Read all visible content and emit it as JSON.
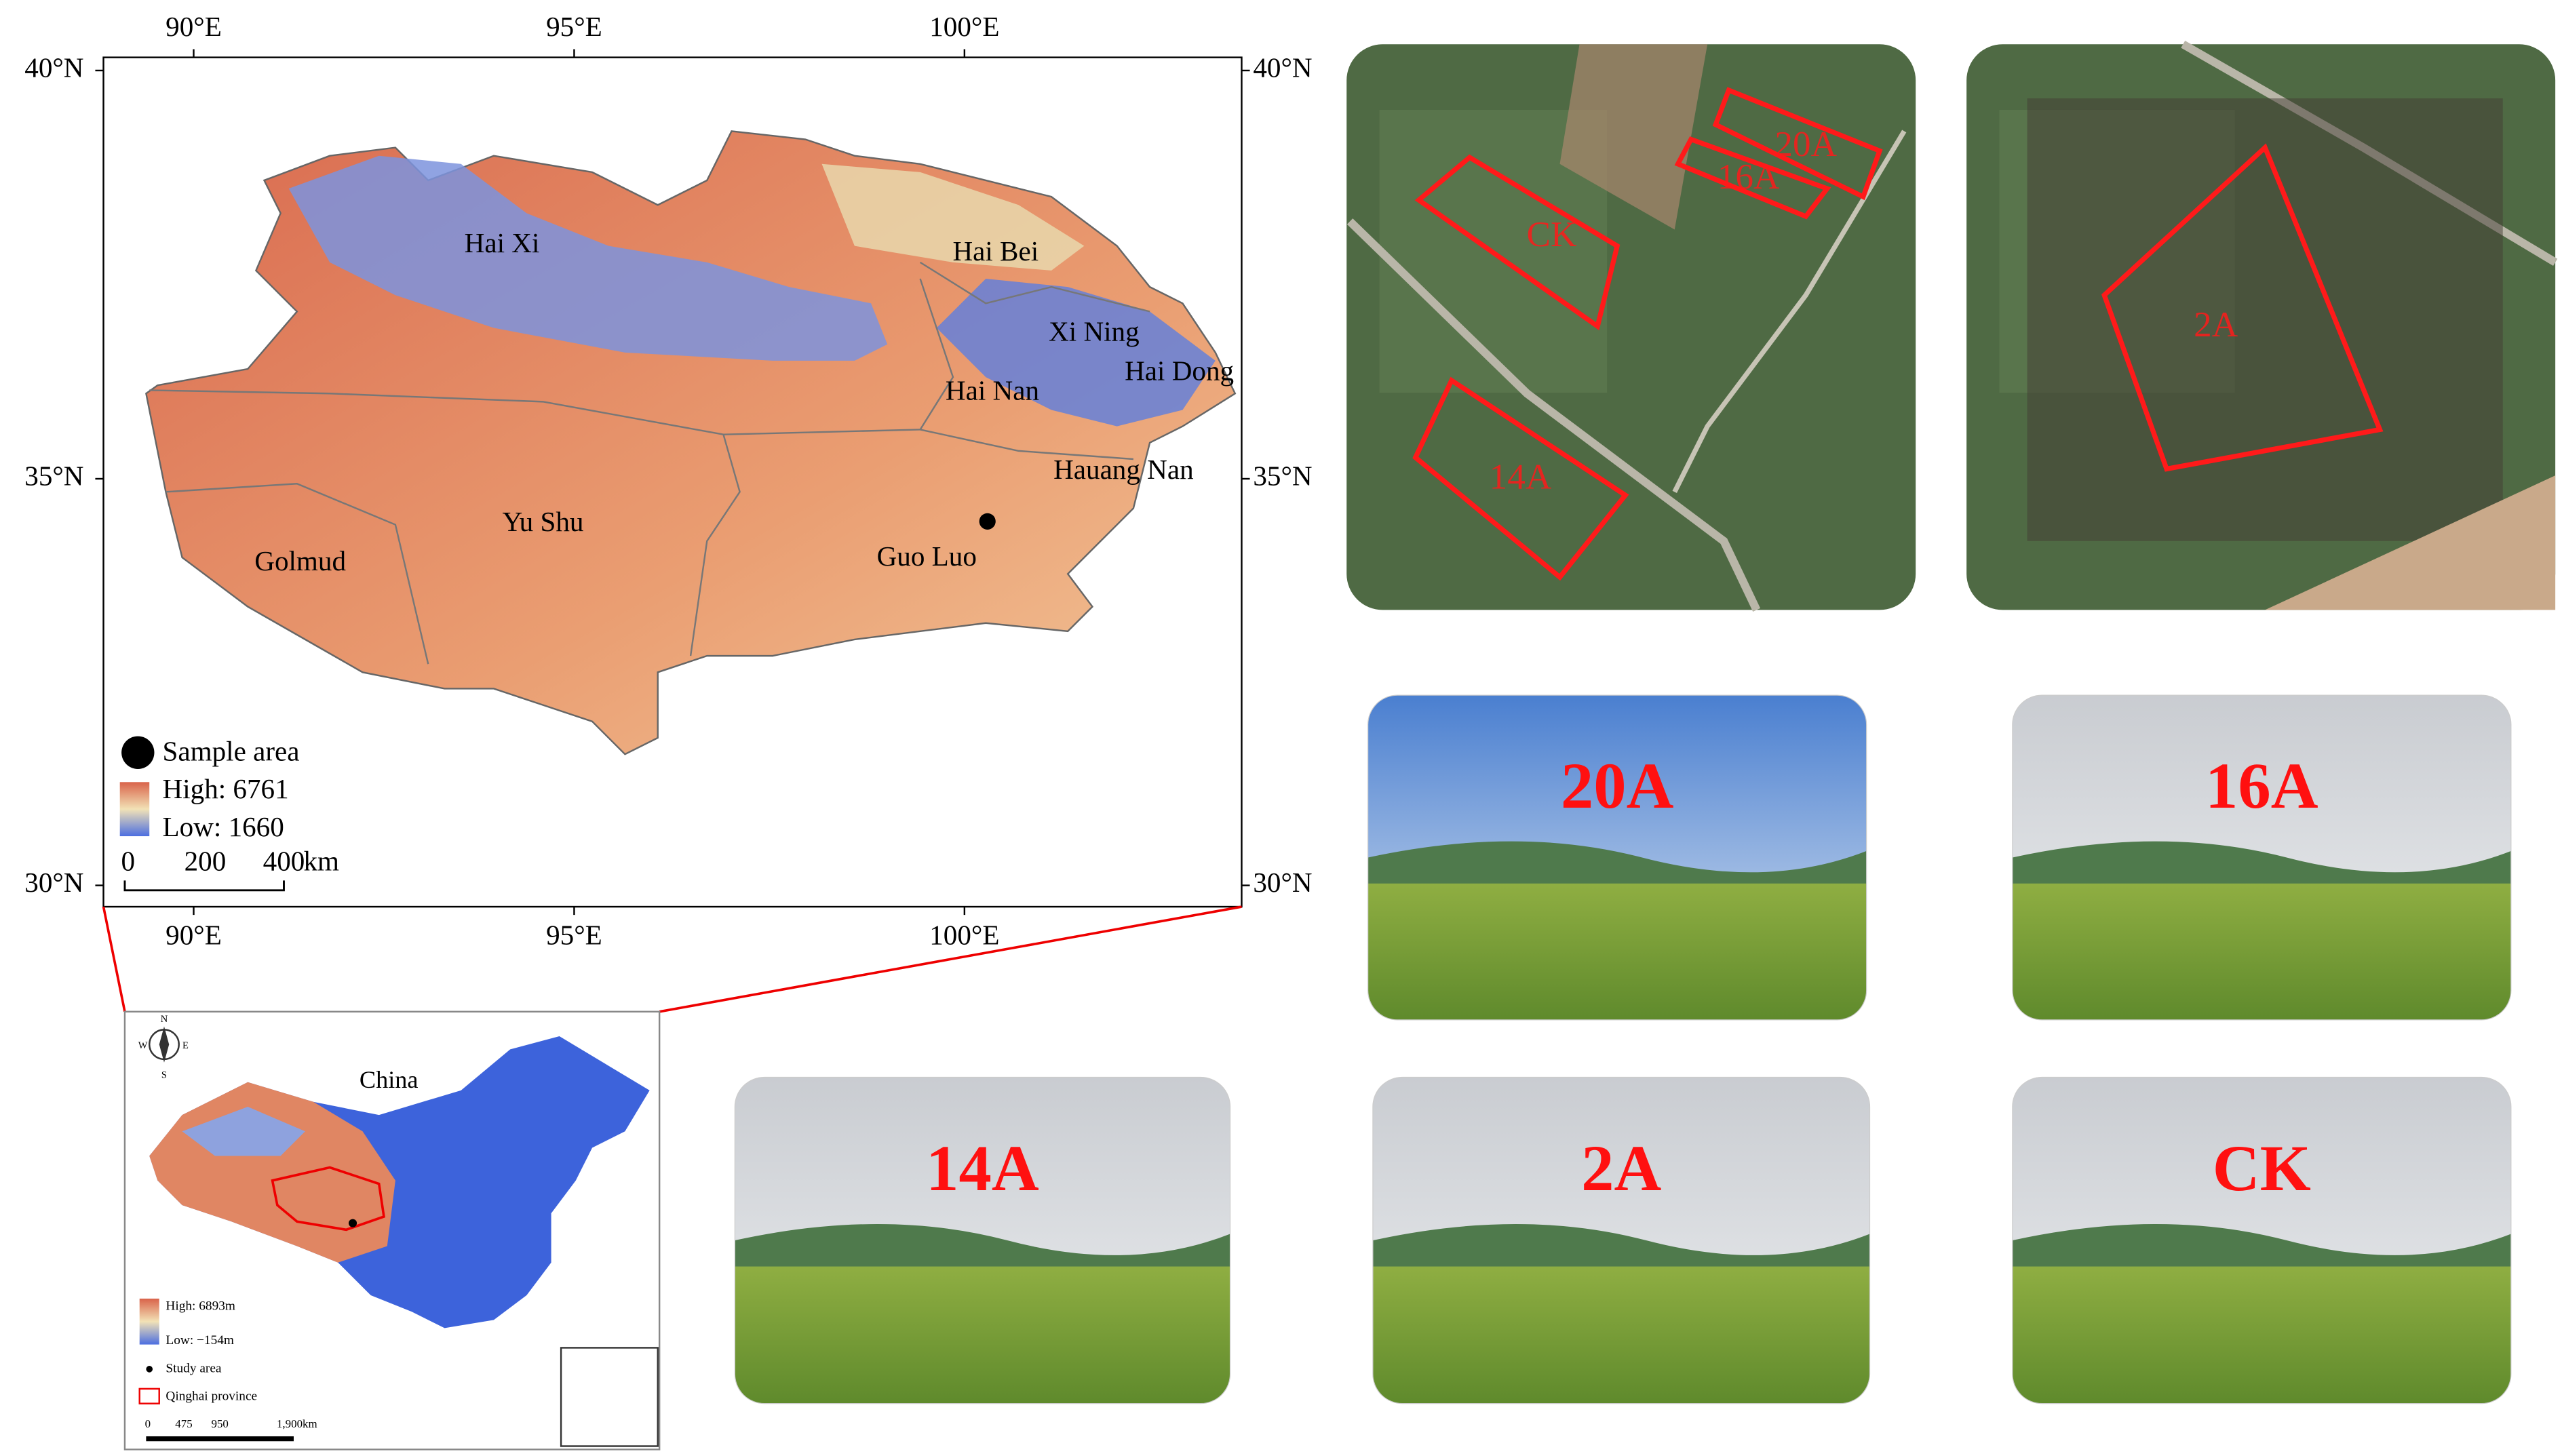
{
  "main_map": {
    "longitude_labels": [
      "90°E",
      "95°E",
      "100°E"
    ],
    "latitude_labels": [
      "40°N",
      "35°N",
      "30°N"
    ],
    "regions": [
      "Hai Xi",
      "Hai Bei",
      "Xi Ning",
      "Hai Dong",
      "Hai Nan",
      "Hauang Nan",
      "Yu Shu",
      "Golmud",
      "Guo Luo"
    ],
    "legend": {
      "sample_area": "Sample area",
      "high": "High: 6761",
      "low": "Low: 1660",
      "scale": [
        "0",
        "200",
        "400"
      ],
      "scale_unit": "km"
    }
  },
  "inset_map": {
    "title": "China",
    "compass": [
      "N",
      "W",
      "E",
      "S"
    ],
    "legend": {
      "high": "High: 6893m",
      "low": "Low: −154m",
      "study_area": "Study area",
      "province": "Qinghai province",
      "scale": [
        "0",
        "475",
        "950",
        "1,900km"
      ]
    }
  },
  "satellite_images": [
    {
      "plots": [
        "CK",
        "20A",
        "16A",
        "14A"
      ]
    },
    {
      "plots": [
        "2A"
      ]
    }
  ],
  "field_photos": [
    "20A",
    "16A",
    "14A",
    "2A",
    "CK"
  ]
}
